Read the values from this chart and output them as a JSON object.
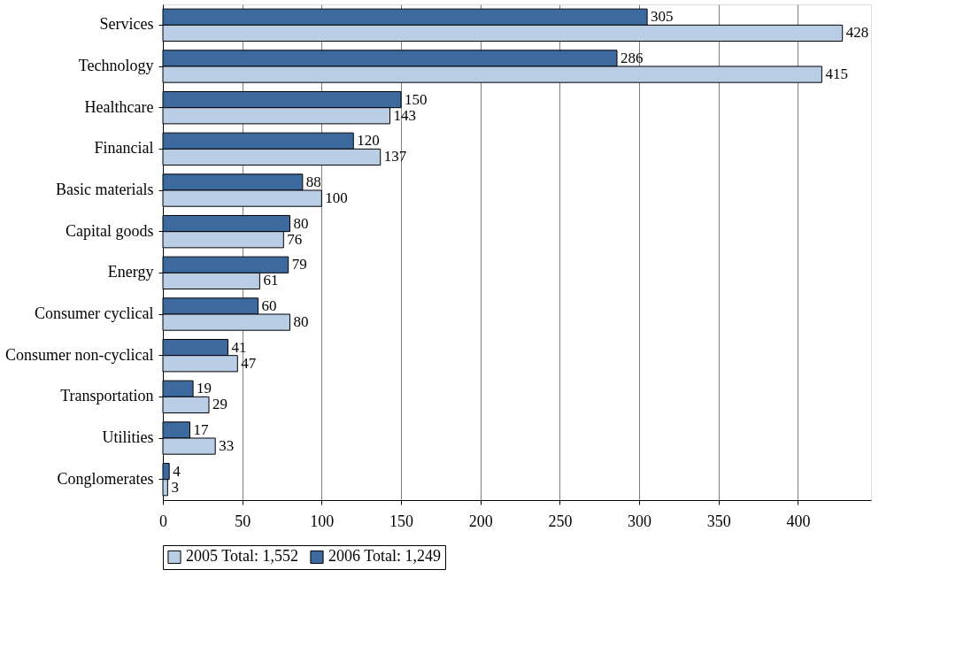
{
  "chart_data": {
    "type": "bar",
    "orientation": "horizontal",
    "categories": [
      "Services",
      "Technology",
      "Healthcare",
      "Financial",
      "Basic materials",
      "Capital goods",
      "Energy",
      "Consumer cyclical",
      "Consumer non-cyclical",
      "Transportation",
      "Utilities",
      "Conglomerates"
    ],
    "series": [
      {
        "name": "2006 Total: 1,249",
        "color": "#3d6a9e",
        "values": [
          305,
          286,
          150,
          120,
          88,
          80,
          79,
          60,
          41,
          19,
          17,
          4
        ]
      },
      {
        "name": "2005 Total: 1,552",
        "color": "#b9cde5",
        "values": [
          428,
          415,
          143,
          137,
          100,
          76,
          61,
          80,
          47,
          29,
          33,
          3
        ]
      }
    ],
    "xlim": [
      0,
      446
    ],
    "xticks": [
      0,
      50,
      100,
      150,
      200,
      250,
      300,
      350,
      400
    ],
    "grid": "x",
    "legend": "bottom",
    "data_labels": true
  }
}
